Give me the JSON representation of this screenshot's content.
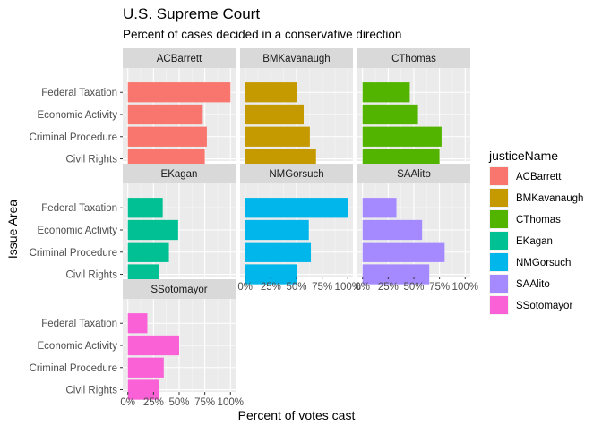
{
  "chart_data": {
    "type": "bar",
    "orientation": "horizontal",
    "faceted": true,
    "title": "U.S. Supreme Court",
    "subtitle": "Percent of cases decided in a conservative direction",
    "xlabel": "Percent of votes cast",
    "ylabel": "Issue Area",
    "xlim": [
      0,
      1
    ],
    "x_ticks": [
      "0%",
      "25%",
      "50%",
      "75%",
      "100%"
    ],
    "categories": [
      "Federal Taxation",
      "Economic Activity",
      "Criminal Procedure",
      "Civil Rights"
    ],
    "grid": true,
    "legend": {
      "title": "justiceName",
      "position": "right"
    },
    "series": [
      {
        "name": "ACBarrett",
        "color": "#F8766D",
        "values": [
          1.0,
          0.73,
          0.77,
          0.75
        ]
      },
      {
        "name": "BMKavanaugh",
        "color": "#C49A00",
        "values": [
          0.5,
          0.57,
          0.63,
          0.69
        ]
      },
      {
        "name": "CThomas",
        "color": "#53B400",
        "values": [
          0.46,
          0.54,
          0.77,
          0.75
        ]
      },
      {
        "name": "EKagan",
        "color": "#00C094",
        "values": [
          0.34,
          0.49,
          0.4,
          0.3
        ]
      },
      {
        "name": "NMGorsuch",
        "color": "#00B6EB",
        "values": [
          1.0,
          0.62,
          0.64,
          0.5
        ]
      },
      {
        "name": "SAAlito",
        "color": "#A58AFF",
        "values": [
          0.33,
          0.58,
          0.8,
          0.65
        ]
      },
      {
        "name": "SSotomayor",
        "color": "#FB61D7",
        "values": [
          0.19,
          0.5,
          0.35,
          0.3
        ]
      }
    ]
  }
}
